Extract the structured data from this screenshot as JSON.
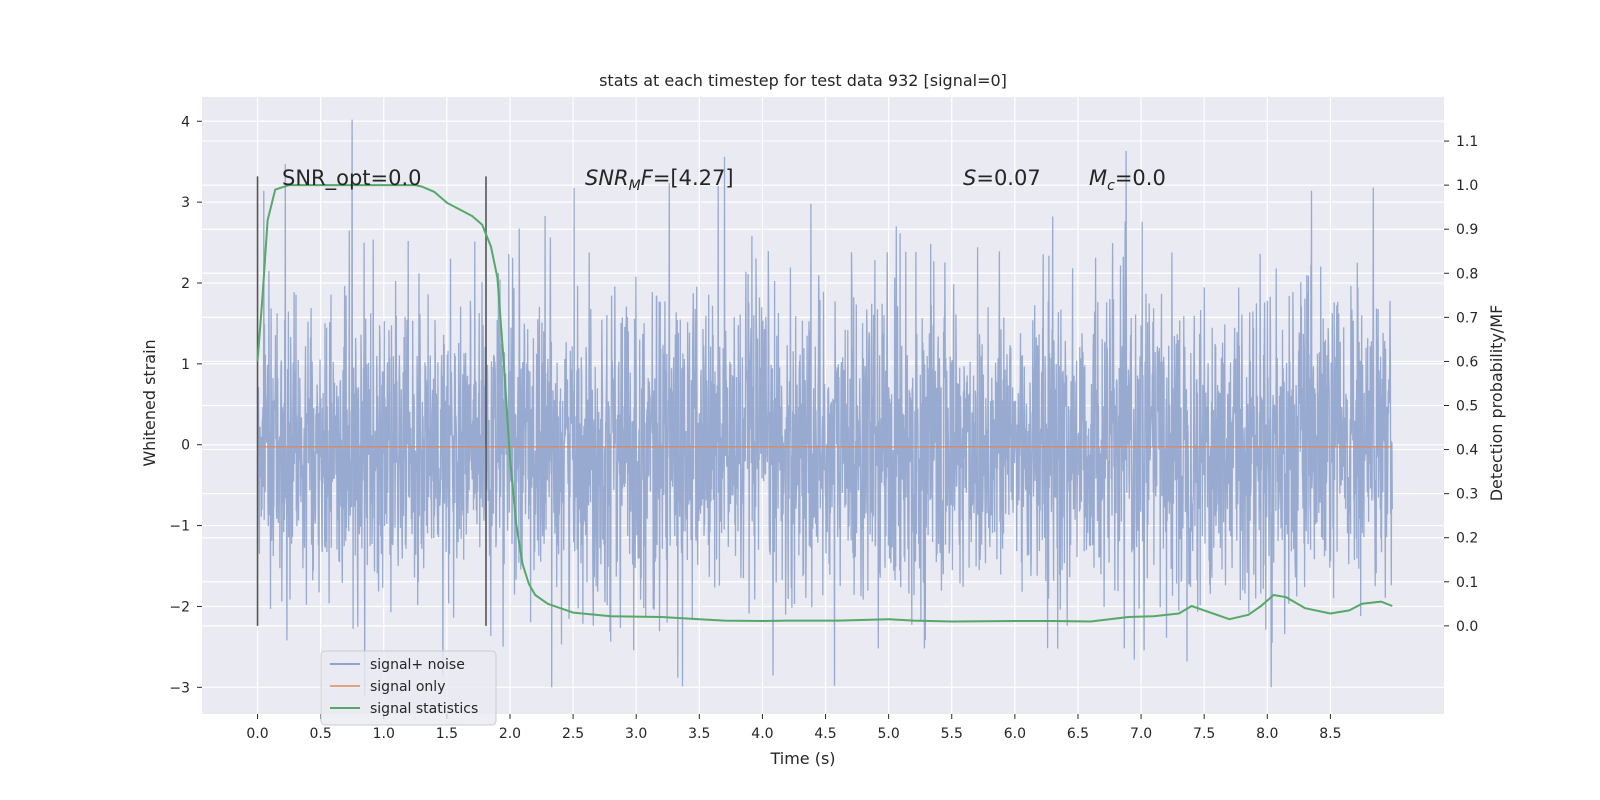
{
  "chart_data": {
    "type": "line",
    "title": "stats at each timestep for test data 932 [signal=0]",
    "xlabel": "Time (s)",
    "ylabel_left": "Whitened strain",
    "ylabel_right": "Detection probability/MF",
    "xlim": [
      -0.44,
      9.4
    ],
    "ylim_left": [
      -3.33,
      4.3
    ],
    "ylim_right": [
      -0.2,
      1.2
    ],
    "x_ticks": [
      "0.0",
      "0.5",
      "1.0",
      "1.5",
      "2.0",
      "2.5",
      "3.0",
      "3.5",
      "4.0",
      "4.5",
      "5.0",
      "5.5",
      "6.0",
      "6.5",
      "7.0",
      "7.5",
      "8.0",
      "8.5"
    ],
    "y_ticks_left": [
      "4",
      "3",
      "2",
      "1",
      "0",
      "−1",
      "−2",
      "−3"
    ],
    "y_ticks_right": [
      "1.1",
      "1.0",
      "0.9",
      "0.8",
      "0.7",
      "0.6",
      "0.5",
      "0.4",
      "0.3",
      "0.2",
      "0.1",
      "0.0"
    ],
    "grid": true,
    "legend_position": "lower-left",
    "colors": {
      "background": "#eaeaf2",
      "grid": "#ffffff",
      "noise": "#8fa3cc",
      "signal_only": "#dd8452",
      "statistics": "#55a868",
      "vline": "#555555"
    },
    "annotations": [
      {
        "text": "SNR_opt=0.0"
      },
      {
        "text": "=[4.27]",
        "math_label": "SNR",
        "math_sub": "M",
        "math_suffix": "F"
      },
      {
        "text": "=0.07",
        "math_label": "S"
      },
      {
        "text": "=0.0",
        "math_label": "M",
        "math_sub": "c"
      }
    ],
    "vertical_lines_x": [
      0.0,
      1.81
    ],
    "series": [
      {
        "name": "signal+ noise",
        "x_range": [
          0.0,
          8.99
        ],
        "value_range": [
          -3.0,
          4.0
        ],
        "peaks": [
          {
            "x": 0.75,
            "y": 4.02
          },
          {
            "x": 0.22,
            "y": 3.47
          },
          {
            "x": 3.7,
            "y": 3.56
          },
          {
            "x": 3.65,
            "y": 3.2
          },
          {
            "x": 8.84,
            "y": 3.18
          },
          {
            "x": 4.57,
            "y": -2.98
          },
          {
            "x": 0.85,
            "y": -3.1
          },
          {
            "x": 3.33,
            "y": -2.88
          },
          {
            "x": 1.47,
            "y": -2.85
          }
        ]
      },
      {
        "name": "signal only",
        "x": [
          0.0,
          8.99
        ],
        "y": [
          0.0,
          0.0
        ]
      },
      {
        "name": "signal statistics",
        "x": [
          0.0,
          0.04,
          0.08,
          0.14,
          0.25,
          0.5,
          0.8,
          1.0,
          1.25,
          1.3,
          1.4,
          1.5,
          1.6,
          1.7,
          1.78,
          1.85,
          1.9,
          1.95,
          2.0,
          2.05,
          2.1,
          2.15,
          2.2,
          2.3,
          2.5,
          2.8,
          3.2,
          3.5,
          3.7,
          4.0,
          4.2,
          4.6,
          5.0,
          5.2,
          5.5,
          6.0,
          6.3,
          6.6,
          6.9,
          7.1,
          7.3,
          7.4,
          7.5,
          7.7,
          7.85,
          7.95,
          8.05,
          8.15,
          8.3,
          8.5,
          8.65,
          8.75,
          8.9,
          8.99
        ],
        "y": [
          0.6,
          0.75,
          0.92,
          0.99,
          1.0,
          1.0,
          1.0,
          1.0,
          1.0,
          0.997,
          0.985,
          0.96,
          0.945,
          0.93,
          0.91,
          0.86,
          0.79,
          0.6,
          0.38,
          0.23,
          0.14,
          0.095,
          0.07,
          0.05,
          0.03,
          0.022,
          0.02,
          0.015,
          0.012,
          0.011,
          0.012,
          0.012,
          0.015,
          0.012,
          0.01,
          0.011,
          0.011,
          0.01,
          0.02,
          0.022,
          0.028,
          0.045,
          0.035,
          0.015,
          0.025,
          0.045,
          0.07,
          0.065,
          0.04,
          0.028,
          0.035,
          0.05,
          0.055,
          0.045
        ]
      }
    ]
  }
}
